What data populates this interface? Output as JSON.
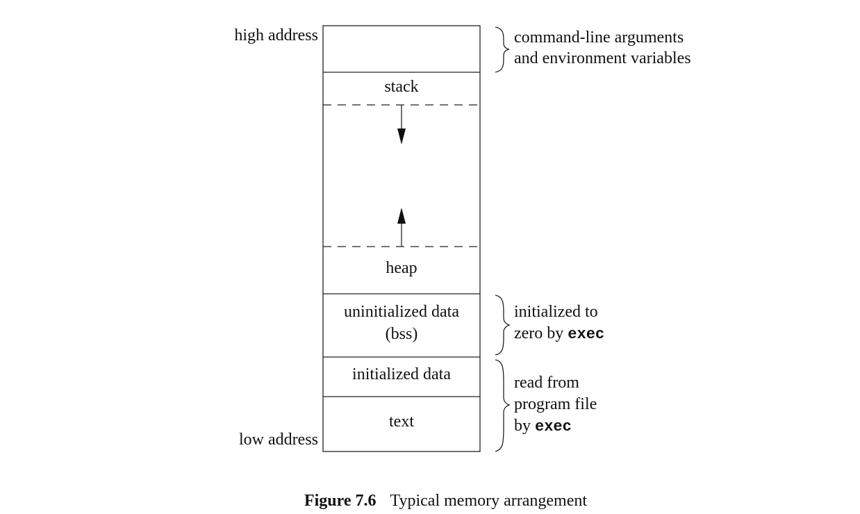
{
  "diagram": {
    "high_address_label": "high address",
    "low_address_label": "low address",
    "segments": {
      "args_env": "",
      "stack": "stack",
      "heap": "heap",
      "bss_line1": "uninitialized data",
      "bss_line2": "(bss)",
      "initialized_data": "initialized data",
      "text": "text"
    },
    "annotations": {
      "args_env_line1": "command-line arguments",
      "args_env_line2": "and environment variables",
      "bss_note_line1": "initialized to",
      "bss_note_line2_prefix": "zero by ",
      "bss_note_line2_code": "exec",
      "read_note_line1": "read from",
      "read_note_line2": "program file",
      "read_note_line3_prefix": "by ",
      "read_note_line3_code": "exec"
    },
    "arrows": {
      "stack_growth": "down",
      "heap_growth": "up"
    }
  },
  "caption": {
    "number": "Figure 7.6",
    "text": "Typical memory arrangement"
  },
  "colors": {
    "line": "#222222",
    "text": "#111111",
    "background": "#ffffff"
  }
}
